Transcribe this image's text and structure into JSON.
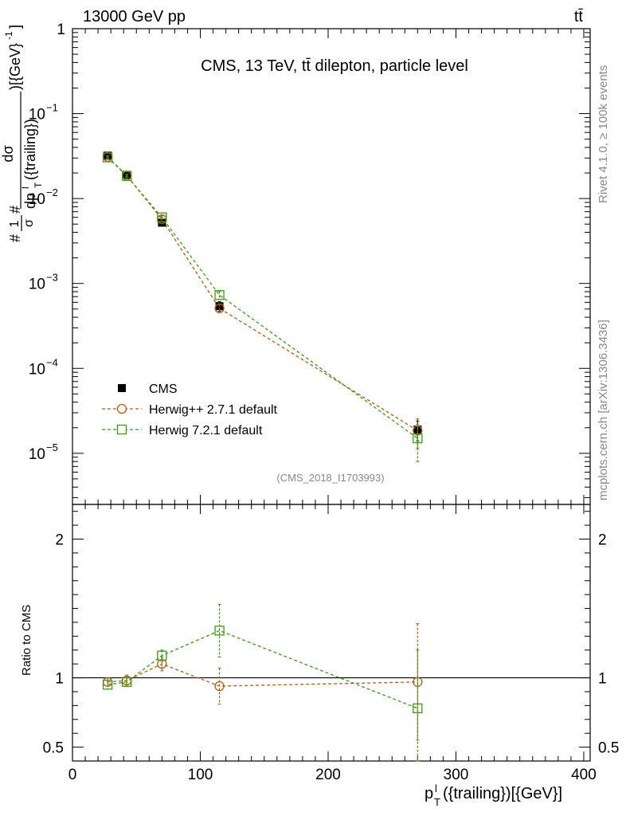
{
  "header": {
    "left": "13000 GeV pp",
    "right": "tt̄"
  },
  "side_labels": {
    "rivet": "Rivet 4.1.0, ≥ 100k events",
    "mcplots": "mcplots.cern.ch [arXiv:1306.3436]"
  },
  "chart_data": {
    "type": "line",
    "title": "CMS, 13 TeV, tt̄ dilepton, particle level",
    "watermark": "(CMS_2018_I1703993)",
    "xlabel": "p_T^l({trailing})[{GeV}]",
    "ylabel": "#frac{1}{#sigma}#frac{d#sigma}{dp^{l}_{T}({trailing})}[{GeV}^{-1}]",
    "ylabel_parts": {
      "frac1_num": "1",
      "frac1_den": "σ",
      "frac2_num": "dσ",
      "frac2_den": "dp",
      "den_sup": "l",
      "den_sub": "T",
      "den_tail": "({trailing})",
      "unit": ")[{GeV}",
      "unit_exp": "-1",
      "unit_close": "]",
      "hash": "#"
    },
    "xlabel_parts": {
      "main": "p",
      "sup": "l",
      "sub": "T",
      "tail": "({trailing})[{GeV}]"
    },
    "xlim": [
      0,
      405
    ],
    "ylim_log": [
      2.5e-06,
      1
    ],
    "x_ticks": [
      0,
      100,
      200,
      300,
      400
    ],
    "x_tick_labels": [
      "0",
      "100",
      "200",
      "300",
      "400"
    ],
    "y_ticks": [
      {
        "mantissa": "1",
        "exp": ""
      },
      {
        "mantissa": "10",
        "exp": "−1"
      },
      {
        "mantissa": "10",
        "exp": "−2"
      },
      {
        "mantissa": "10",
        "exp": "−3"
      },
      {
        "mantissa": "10",
        "exp": "−4"
      },
      {
        "mantissa": "10",
        "exp": "−5"
      }
    ],
    "x": [
      27.5,
      42.5,
      70,
      115,
      270
    ],
    "series": [
      {
        "name": "CMS",
        "color": "#000000",
        "marker": "filled-square",
        "values": [
          0.032,
          0.019,
          0.0052,
          0.00054,
          1.9e-05
        ],
        "errors": [
          0.0012,
          0.0006,
          0.0003,
          7e-05,
          5e-06
        ]
      },
      {
        "name": "Herwig++ 2.7.1 default",
        "color": "#b25a14",
        "marker": "open-circle",
        "values": [
          0.031,
          0.0186,
          0.0057,
          0.00051,
          1.85e-05
        ],
        "errors": [
          0.001,
          0.0006,
          0.0003,
          6e-05,
          7e-06
        ]
      },
      {
        "name": "Herwig 7.2.1 default",
        "color": "#3c9a14",
        "marker": "open-square",
        "values": [
          0.0305,
          0.0184,
          0.006,
          0.00073,
          1.5e-05
        ],
        "errors": [
          0.001,
          0.0006,
          0.0003,
          8e-05,
          7e-06
        ]
      }
    ],
    "ratio": {
      "ylabel": "Ratio to CMS",
      "ylim": [
        0.4,
        2.25
      ],
      "y_ticks": [
        0.5,
        1,
        2
      ],
      "y_tick_labels": [
        "0.5",
        "1",
        "2"
      ],
      "series": [
        {
          "name": "Herwig++ 2.7.1 default",
          "values": [
            0.97,
            0.98,
            1.1,
            0.94,
            0.97
          ],
          "errors": [
            0.03,
            0.04,
            0.05,
            0.13,
            0.42
          ]
        },
        {
          "name": "Herwig 7.2.1 default",
          "values": [
            0.95,
            0.97,
            1.16,
            1.34,
            0.78
          ],
          "errors": [
            0.03,
            0.03,
            0.04,
            0.19,
            0.42
          ]
        }
      ]
    }
  }
}
